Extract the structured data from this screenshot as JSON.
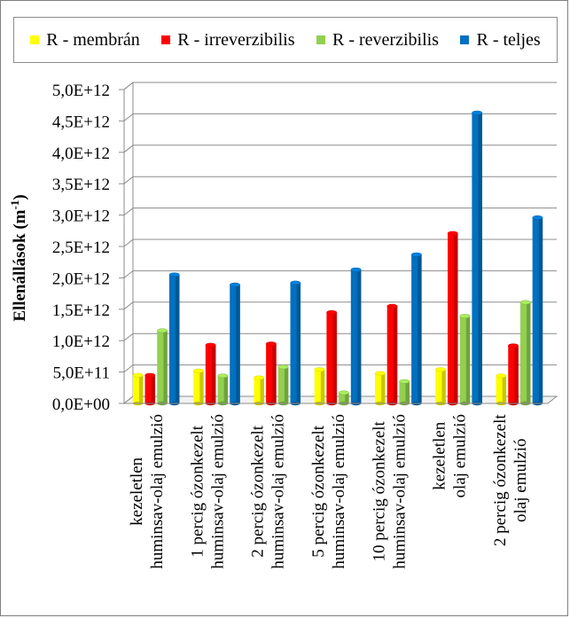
{
  "chart_data": {
    "type": "bar",
    "ylabel": "Ellenállások (m",
    "ylabel_sup": "-1",
    "ylabel_tail": ")",
    "ylim": [
      0,
      5000000000000.0
    ],
    "yticks": [
      {
        "value": 0.0,
        "label": "0,0E+00"
      },
      {
        "value": 500000000000.0,
        "label": "5,0E+11"
      },
      {
        "value": 1000000000000.0,
        "label": "1,0E+12"
      },
      {
        "value": 1500000000000.0,
        "label": "1,5E+12"
      },
      {
        "value": 2000000000000.0,
        "label": "2,0E+12"
      },
      {
        "value": 2500000000000.0,
        "label": "2,5E+12"
      },
      {
        "value": 3000000000000.0,
        "label": "3,0E+12"
      },
      {
        "value": 3500000000000.0,
        "label": "3,5E+12"
      },
      {
        "value": 4000000000000.0,
        "label": "4,0E+12"
      },
      {
        "value": 4500000000000.0,
        "label": "4,5E+12"
      },
      {
        "value": 5000000000000.0,
        "label": "5,0E+12"
      }
    ],
    "grid": true,
    "legend_position": "top",
    "categories": [
      [
        "kezeletlen",
        "huminsav-olaj emulzió"
      ],
      [
        "1 percig ózonkezelt",
        "huminsav-olaj emulzió"
      ],
      [
        "2 percig ózonkezelt",
        "huminsav-olaj emulzió"
      ],
      [
        "5 percig ózonkezelt",
        "huminsav-olaj emulzió"
      ],
      [
        "10 percig ózonkezelt",
        "huminsav-olaj emulzió"
      ],
      [
        "kezeletlen",
        "olaj emulzió"
      ],
      [
        "2 percig ózonkezelt",
        "olaj emulzió"
      ]
    ],
    "series": [
      {
        "name": "R - membrán",
        "color": "#ffff00",
        "values": [
          450000000000.0,
          520000000000.0,
          410000000000.0,
          540000000000.0,
          480000000000.0,
          540000000000.0,
          440000000000.0
        ]
      },
      {
        "name": "R - irreverzibilis",
        "color": "#ff0000",
        "values": [
          450000000000.0,
          930000000000.0,
          950000000000.0,
          1450000000000.0,
          1550000000000.0,
          2710000000000.0,
          920000000000.0
        ]
      },
      {
        "name": "R - reverzibilis",
        "color": "#92d050",
        "values": [
          1160000000000.0,
          440000000000.0,
          580000000000.0,
          170000000000.0,
          350000000000.0,
          1390000000000.0,
          1610000000000.0
        ]
      },
      {
        "name": "R - teljes",
        "color": "#0070c0",
        "values": [
          2050000000000.0,
          1890000000000.0,
          1920000000000.0,
          2130000000000.0,
          2370000000000.0,
          4630000000000.0,
          2960000000000.0
        ]
      }
    ]
  }
}
